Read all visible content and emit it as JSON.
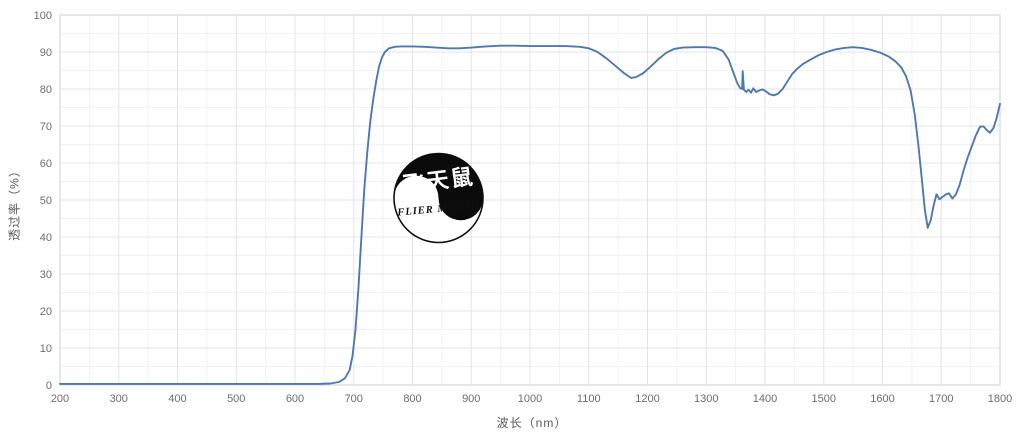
{
  "colors": {
    "line": "#4e79b0",
    "grid_major": "#e0e5eb",
    "grid_minor": "#f0f2f5",
    "plot_border": "#d2d9de",
    "tick_text": "#6d6d6d",
    "axis_title_text": "#595959",
    "watermark_black": "#0b0b0b",
    "watermark_white": "#ffffff"
  },
  "watermark": {
    "cn": "飞天鼠",
    "en": "FLIER MOUSE"
  },
  "chart_data": {
    "type": "line",
    "title": "",
    "xlabel": "波长（nm）",
    "ylabel": "透过率（%）",
    "xlim": [
      200,
      1800
    ],
    "ylim": [
      0,
      100
    ],
    "x_ticks": [
      200,
      300,
      400,
      500,
      600,
      700,
      800,
      900,
      1000,
      1100,
      1200,
      1300,
      1400,
      1500,
      1600,
      1700,
      1800
    ],
    "y_ticks": [
      0,
      10,
      20,
      30,
      40,
      50,
      60,
      70,
      80,
      90,
      100
    ],
    "minor_x_step": 50,
    "minor_y_step": 5,
    "grid": "major+minor",
    "legend": "none",
    "series": [
      {
        "name": "透过率",
        "color": "#4e79b0",
        "points": [
          [
            200,
            0.3
          ],
          [
            250,
            0.3
          ],
          [
            300,
            0.3
          ],
          [
            350,
            0.3
          ],
          [
            400,
            0.3
          ],
          [
            450,
            0.3
          ],
          [
            500,
            0.3
          ],
          [
            550,
            0.3
          ],
          [
            600,
            0.3
          ],
          [
            640,
            0.3
          ],
          [
            660,
            0.4
          ],
          [
            675,
            0.8
          ],
          [
            685,
            1.8
          ],
          [
            693,
            4
          ],
          [
            698,
            8
          ],
          [
            703,
            15
          ],
          [
            708,
            26
          ],
          [
            713,
            40
          ],
          [
            718,
            53
          ],
          [
            723,
            63
          ],
          [
            728,
            71
          ],
          [
            733,
            77
          ],
          [
            738,
            82
          ],
          [
            743,
            86
          ],
          [
            748,
            88.5
          ],
          [
            753,
            90
          ],
          [
            760,
            91
          ],
          [
            770,
            91.4
          ],
          [
            780,
            91.5
          ],
          [
            800,
            91.5
          ],
          [
            820,
            91.4
          ],
          [
            840,
            91.2
          ],
          [
            860,
            91.0
          ],
          [
            880,
            91.0
          ],
          [
            900,
            91.2
          ],
          [
            925,
            91.5
          ],
          [
            950,
            91.7
          ],
          [
            975,
            91.7
          ],
          [
            1000,
            91.6
          ],
          [
            1030,
            91.6
          ],
          [
            1060,
            91.6
          ],
          [
            1085,
            91.4
          ],
          [
            1100,
            91.0
          ],
          [
            1115,
            90.0
          ],
          [
            1130,
            88.3
          ],
          [
            1145,
            86.3
          ],
          [
            1160,
            84.3
          ],
          [
            1172,
            83.0
          ],
          [
            1180,
            83.2
          ],
          [
            1192,
            84.2
          ],
          [
            1205,
            86.0
          ],
          [
            1218,
            88.0
          ],
          [
            1232,
            89.8
          ],
          [
            1245,
            90.8
          ],
          [
            1260,
            91.2
          ],
          [
            1280,
            91.3
          ],
          [
            1300,
            91.3
          ],
          [
            1315,
            91.1
          ],
          [
            1328,
            90.3
          ],
          [
            1338,
            88.0
          ],
          [
            1346,
            84.5
          ],
          [
            1353,
            81.5
          ],
          [
            1358,
            80.2
          ],
          [
            1361,
            80.0
          ],
          [
            1362,
            84.8
          ],
          [
            1364,
            79.8
          ],
          [
            1368,
            79.2
          ],
          [
            1372,
            79.8
          ],
          [
            1376,
            79.0
          ],
          [
            1380,
            80.2
          ],
          [
            1385,
            79.2
          ],
          [
            1390,
            79.6
          ],
          [
            1396,
            79.9
          ],
          [
            1402,
            79.3
          ],
          [
            1408,
            78.6
          ],
          [
            1415,
            78.3
          ],
          [
            1422,
            78.7
          ],
          [
            1430,
            80.0
          ],
          [
            1438,
            82.0
          ],
          [
            1446,
            84.0
          ],
          [
            1455,
            85.5
          ],
          [
            1465,
            86.8
          ],
          [
            1478,
            88.0
          ],
          [
            1492,
            89.2
          ],
          [
            1505,
            90.0
          ],
          [
            1520,
            90.7
          ],
          [
            1535,
            91.1
          ],
          [
            1550,
            91.3
          ],
          [
            1565,
            91.1
          ],
          [
            1580,
            90.6
          ],
          [
            1595,
            89.9
          ],
          [
            1610,
            88.8
          ],
          [
            1622,
            87.5
          ],
          [
            1632,
            85.8
          ],
          [
            1640,
            83.5
          ],
          [
            1648,
            79.5
          ],
          [
            1655,
            73
          ],
          [
            1661,
            65
          ],
          [
            1667,
            55.5
          ],
          [
            1672,
            47.5
          ],
          [
            1677,
            42.5
          ],
          [
            1682,
            44.5
          ],
          [
            1687,
            48.5
          ],
          [
            1692,
            51.5
          ],
          [
            1697,
            50.2
          ],
          [
            1702,
            50.8
          ],
          [
            1708,
            51.5
          ],
          [
            1713,
            51.8
          ],
          [
            1719,
            50.4
          ],
          [
            1725,
            51.5
          ],
          [
            1731,
            54
          ],
          [
            1738,
            58
          ],
          [
            1745,
            61.5
          ],
          [
            1752,
            64.5
          ],
          [
            1759,
            67.5
          ],
          [
            1766,
            69.8
          ],
          [
            1772,
            69.9
          ],
          [
            1778,
            68.8
          ],
          [
            1783,
            68.2
          ],
          [
            1789,
            69.5
          ],
          [
            1794,
            72
          ],
          [
            1800,
            76
          ]
        ]
      }
    ]
  }
}
